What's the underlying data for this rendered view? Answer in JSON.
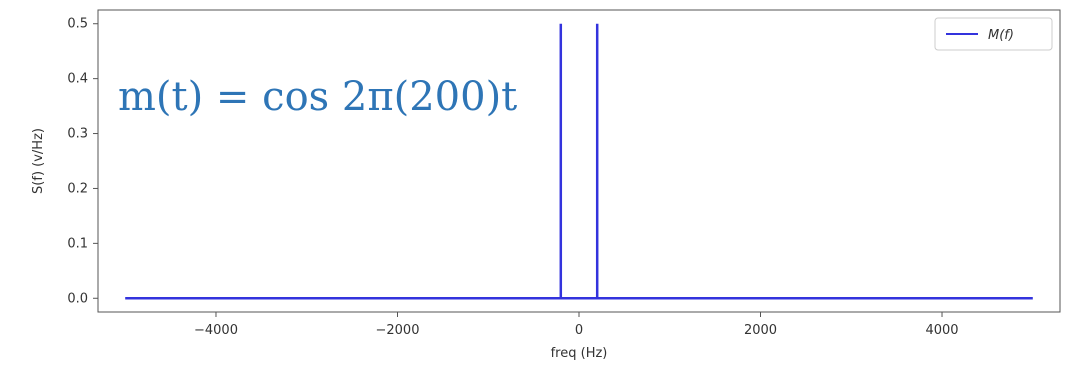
{
  "chart_data": {
    "type": "line",
    "title": "",
    "xlabel": "freq (Hz)",
    "ylabel": "S(f) (v/Hz)",
    "xlim": [
      -5300,
      5300
    ],
    "ylim": [
      -0.025,
      0.525
    ],
    "x_ticks": [
      -4000,
      -2000,
      0,
      2000,
      4000
    ],
    "x_tick_labels": [
      "−4000",
      "−2000",
      "0",
      "2000",
      "4000"
    ],
    "y_ticks": [
      0.0,
      0.1,
      0.2,
      0.3,
      0.4,
      0.5
    ],
    "y_tick_labels": [
      "0.0",
      "0.1",
      "0.2",
      "0.3",
      "0.4",
      "0.5"
    ],
    "grid": false,
    "legend_position": "top-right",
    "series": [
      {
        "name": "M(f)",
        "color": "#3333dd",
        "x": [
          -5000,
          -200,
          -200,
          -200,
          200,
          200,
          200,
          5000
        ],
        "y": [
          0,
          0,
          0.5,
          0,
          0,
          0.5,
          0,
          0
        ]
      }
    ],
    "annotations": [
      {
        "text": "m(t) = cos 2π(200)t"
      }
    ]
  }
}
